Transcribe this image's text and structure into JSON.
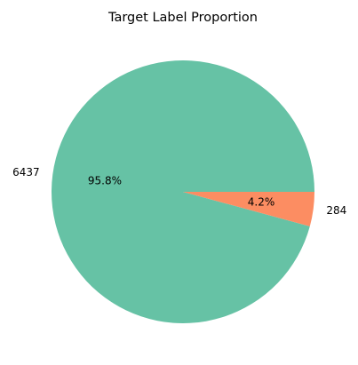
{
  "chart_data": {
    "type": "pie",
    "title": "Target Label Proportion",
    "slices": [
      {
        "label": "6437",
        "value": 6437,
        "percent_label": "95.8%",
        "color": "#66c2a5"
      },
      {
        "label": "284",
        "value": 284,
        "percent_label": "4.2%",
        "color": "#fc8d62"
      }
    ],
    "start_angle_deg": 0,
    "direction": "counterclockwise",
    "legend": "none"
  }
}
